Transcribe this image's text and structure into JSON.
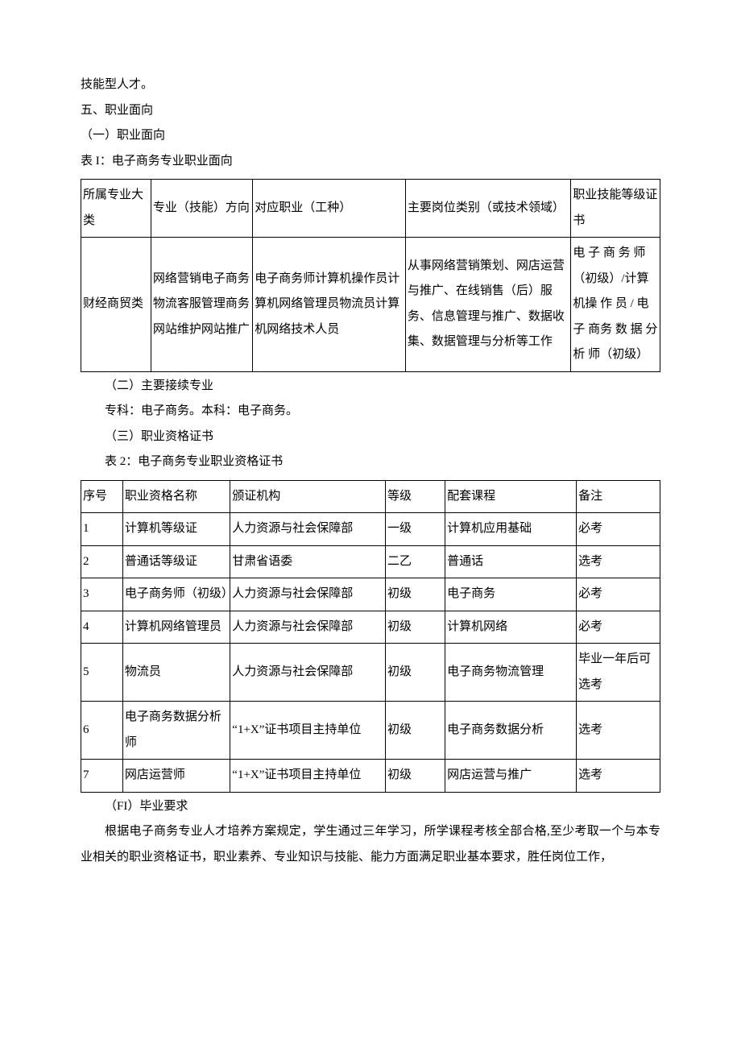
{
  "top_line": "技能型人才。",
  "section5_title": "五、职业面向",
  "sub_1": "（一）职业面向",
  "table1_caption": "表 I：电子商务专业职业面向",
  "table1": {
    "headers": [
      "所属专业大类",
      "专业（技能）方向",
      "对应职业（工种）",
      "主要岗位类别（或技术领域）",
      "职业技能等级证书"
    ],
    "row": [
      "财经商贸类",
      "网络营销电子商务物流客服管理商务网站维护网站推广",
      "电子商务师计算机操作员计算机网络管理员物流员计算机网络技术人员",
      "从事网络营销策划、网店运营与推广、在线销售（后）服务、信息管理与推广、数据收集、数据管理与分析等工作",
      "电 子 商 务 师（初级）/计算机操 作 员 / 电 子 商务 数 据 分 析 师（初级）"
    ]
  },
  "sub_2": "（二）主要接续专业",
  "sub_2_text": "专科：电子商务。本科：电子商务。",
  "sub_3": "（三）职业资格证书",
  "table2_caption": "表 2：电子商务专业职业资格证书",
  "table2": {
    "headers": [
      "序号",
      "职业资格名称",
      "颁证机构",
      "等级",
      "配套课程",
      "备注"
    ],
    "rows": [
      [
        "1",
        "计算机等级证",
        "人力资源与社会保障部",
        "一级",
        "计算机应用基础",
        "必考"
      ],
      [
        "2",
        "普通话等级证",
        "甘肃省语委",
        "二乙",
        "普通话",
        "选考"
      ],
      [
        "3",
        "电子商务师（初级）",
        "人力资源与社会保障部",
        "初级",
        "电子商务",
        "必考"
      ],
      [
        "4",
        "计算机网络管理员",
        "人力资源与社会保障部",
        "初级",
        "计算机网络",
        "必考"
      ],
      [
        "5",
        "物流员",
        "人力资源与社会保障部",
        "初级",
        "电子商务物流管理",
        "毕业一年后可选考"
      ],
      [
        "6",
        "电子商务数据分析师",
        "“1+X”证书项目主持单位",
        "初级",
        "电子商务数据分析",
        "选考"
      ],
      [
        "7",
        "网店运营师",
        "“1+X”证书项目主持单位",
        "初级",
        "网店运营与推广",
        "选考"
      ]
    ]
  },
  "sub_4": "（FI）毕业要求",
  "final_para": "根据电子商务专业人才培养方案规定，学生通过三年学习，所学课程考核全部合格,至少考取一个与本专业相关的职业资格证书，职业素养、专业知识与技能、能力方面满足职业基本要求，胜任岗位工作，"
}
